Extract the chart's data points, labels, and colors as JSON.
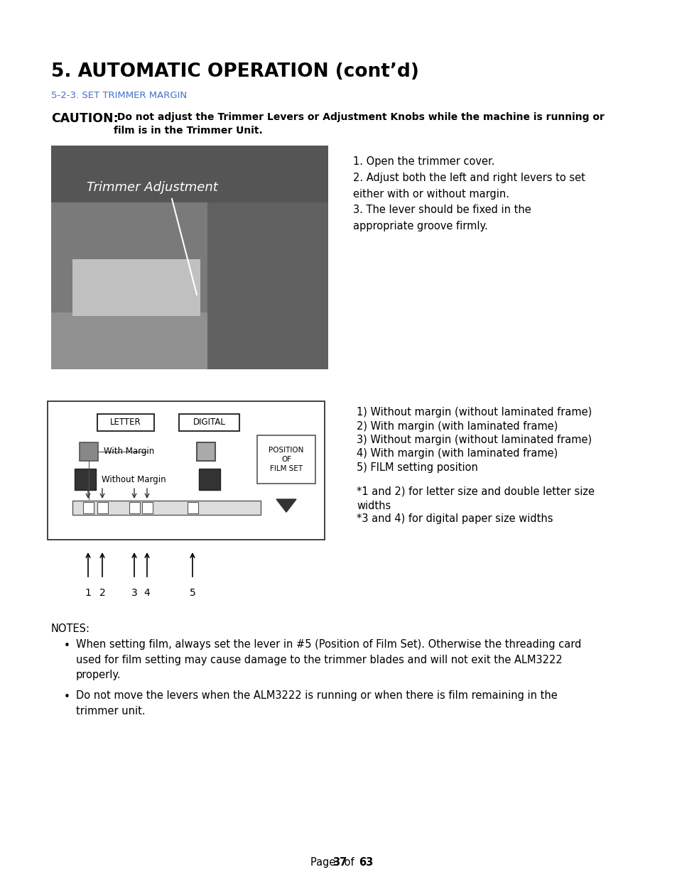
{
  "bg_color": "#ffffff",
  "title": "5. AUTOMATIC OPERATION (cont’d)",
  "subtitle": "5-2-3. SET TRIMMER MARGIN",
  "subtitle_color": "#4472c4",
  "caution_bold": "CAUTION:",
  "caution_rest": " Do not adjust the Trimmer Levers or Adjustment Knobs while the machine is running or\nfilm is in the Trimmer Unit.",
  "steps_text": "1. Open the trimmer cover.\n2. Adjust both the left and right levers to set\neither with or without margin.\n3. The lever should be fixed in the\nappropriate groove firmly.",
  "diagram_list": [
    "1) Without margin (without laminated frame)",
    "2) With margin (with laminated frame)",
    "3) Without margin (without laminated frame)",
    "4) With margin (with laminated frame)",
    "5) FILM setting position",
    "",
    "*1 and 2) for letter size and double letter size\nwidths",
    "*3 and 4) for digital paper size widths"
  ],
  "notes_label": "NOTES:",
  "note1_line1": "When setting film, always set the lever in #5 (Position of Film Set). Otherwise the threading card",
  "note1_line2": "used for film setting may cause damage to the trimmer blades and will not exit the ALM3222",
  "note1_line3": "properly.",
  "note2_line1": "Do not move the levers when the ALM3222 is running or when there is film remaining in the",
  "note2_line2": "trimmer unit.",
  "page_label": "Page ",
  "page_num": "37",
  "page_of": " of ",
  "page_total": "63"
}
